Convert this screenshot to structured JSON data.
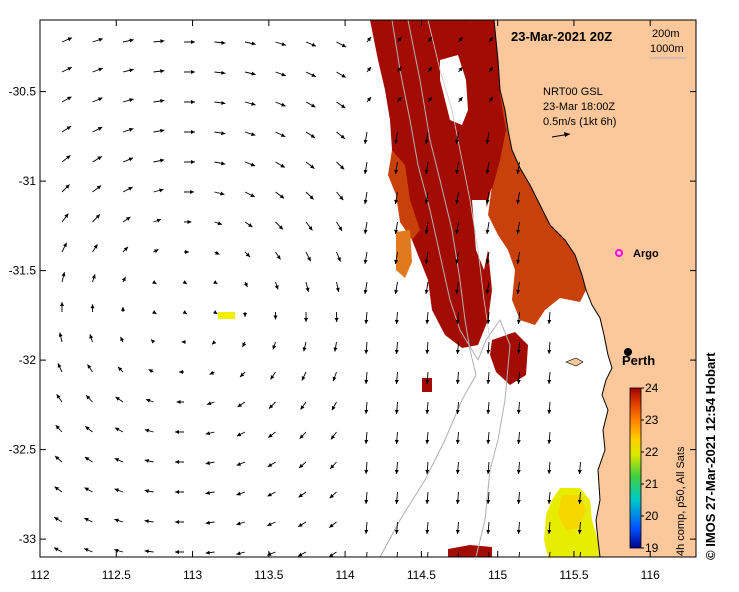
{
  "map": {
    "title": "23-Mar-2021 20Z",
    "depth_contours": [
      "200m",
      "1000m"
    ],
    "current_legend": {
      "source": "NRT00 GSL",
      "time": "23-Mar 18:00Z",
      "scale": "0.5m/s (1kt 6h)"
    },
    "places": [
      {
        "name": "Argo",
        "lon": 115.82,
        "lat": -31.42,
        "marker": "magenta-circle"
      },
      {
        "name": "Perth",
        "lon": 115.86,
        "lat": -31.95,
        "marker": "black-dot"
      }
    ],
    "lon_ticks": [
      "112",
      "112.5",
      "113",
      "113.5",
      "114",
      "114.5",
      "115",
      "115.5",
      "116"
    ],
    "lat_ticks": [
      "-30.5",
      "-31",
      "-31.5",
      "-32",
      "-32.5",
      "-33"
    ],
    "lon_range": [
      112,
      116.3
    ],
    "lat_range": [
      -33.1,
      -30.1
    ],
    "colorbar": {
      "title": "4h comp, p50, All Sats",
      "ticks": [
        "24",
        "23",
        "22",
        "21",
        "20",
        "19"
      ],
      "range": [
        19,
        24
      ],
      "colors": [
        "#00008b",
        "#0050ff",
        "#00c8c8",
        "#40d040",
        "#d8e800",
        "#ffd000",
        "#ff8000",
        "#e04000",
        "#a00000"
      ]
    },
    "credit": "IMOS 27-Mar-2021 12:54 Hobart",
    "copyright": "©",
    "colors": {
      "land": "#fcc79a",
      "warm": "#a30c03",
      "mid": "#c8410b",
      "orange": "#e07a1c",
      "yellow": "#f0f000",
      "contour": "#b0b0b0"
    }
  }
}
